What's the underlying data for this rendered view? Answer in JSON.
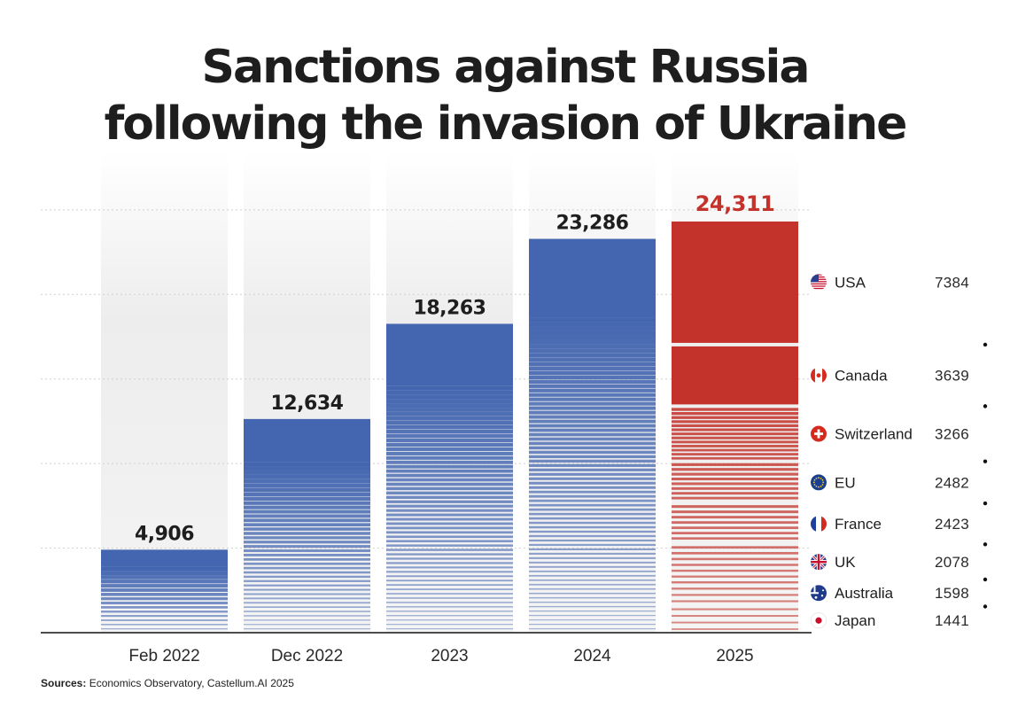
{
  "chart_data": {
    "type": "bar",
    "title_lines": [
      "Sanctions against Russia",
      "following the invasion of Ukraine"
    ],
    "categories": [
      "Feb 2022",
      "Dec 2022",
      "2023",
      "2024",
      "2025"
    ],
    "values": [
      4906,
      12634,
      18263,
      23286,
      24311
    ],
    "value_labels": [
      "4,906",
      "12,634",
      "18,263",
      "23,286",
      "24,311"
    ],
    "ylim": [
      0,
      25000
    ],
    "grid": true,
    "highlight_category": "2025",
    "breakdown_2025": [
      {
        "country": "USA",
        "value": 7384,
        "flag": "us-flag-icon"
      },
      {
        "country": "Canada",
        "value": 3639,
        "flag": "canada-flag-icon"
      },
      {
        "country": "Switzerland",
        "value": 3266,
        "flag": "switzerland-flag-icon"
      },
      {
        "country": "EU",
        "value": 2482,
        "flag": "eu-flag-icon"
      },
      {
        "country": "France",
        "value": 2423,
        "flag": "france-flag-icon"
      },
      {
        "country": "UK",
        "value": 2078,
        "flag": "uk-flag-icon"
      },
      {
        "country": "Australia",
        "value": 1598,
        "flag": "australia-flag-icon"
      },
      {
        "country": "Japan",
        "value": 1441,
        "flag": "japan-flag-icon"
      }
    ]
  },
  "colors": {
    "blue": "#4466b0",
    "red": "#c3332b",
    "text": "#1e1e1e",
    "column_bg": "#ededed"
  },
  "sources": {
    "label": "Sources:",
    "text": "Economics Observatory, Castellum.AI 2025"
  }
}
